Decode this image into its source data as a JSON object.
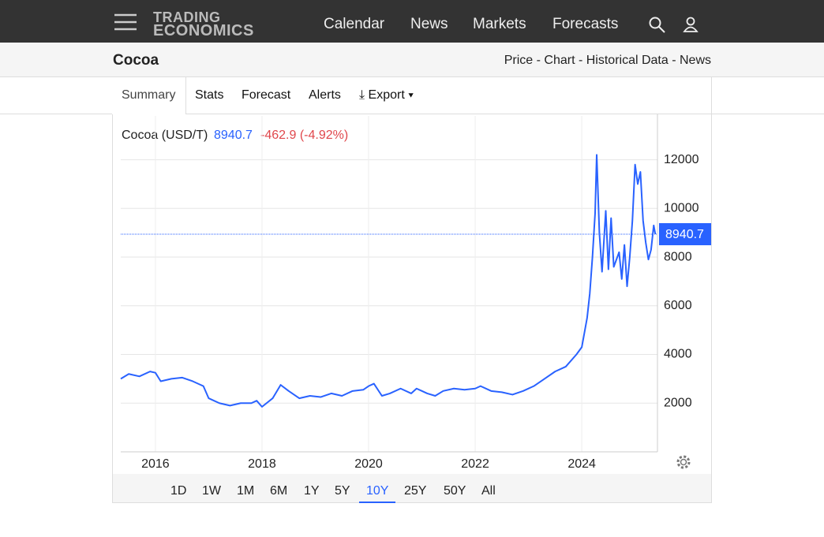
{
  "logo": {
    "line1": "TRADING",
    "line2": "ECONOMICS"
  },
  "nav": [
    "Calendar",
    "News",
    "Markets",
    "Forecasts"
  ],
  "page_title": "Cocoa",
  "page_links": [
    "Price",
    "Chart",
    "Historical Data",
    "News"
  ],
  "tabs": [
    "Summary",
    "Stats",
    "Forecast",
    "Alerts",
    "Export"
  ],
  "chart_data": {
    "type": "line",
    "current_value": 8940.7,
    "change_label": "-462.9 (-4.92%)",
    "x": [
      2015.35,
      2015.5,
      2015.7,
      2015.9,
      2016.0,
      2016.1,
      2016.3,
      2016.5,
      2016.7,
      2016.9,
      2017.0,
      2017.2,
      2017.4,
      2017.6,
      2017.8,
      2017.9,
      2018.0,
      2018.2,
      2018.35,
      2018.5,
      2018.7,
      2018.9,
      2019.1,
      2019.3,
      2019.5,
      2019.7,
      2019.9,
      2020.0,
      2020.1,
      2020.25,
      2020.4,
      2020.6,
      2020.8,
      2020.9,
      2021.0,
      2021.1,
      2021.25,
      2021.4,
      2021.6,
      2021.8,
      2022.0,
      2022.1,
      2022.3,
      2022.5,
      2022.7,
      2022.9,
      2023.1,
      2023.3,
      2023.5,
      2023.7,
      2023.9,
      2024.0,
      2024.1,
      2024.15,
      2024.2,
      2024.25,
      2024.28,
      2024.33,
      2024.38,
      2024.45,
      2024.5,
      2024.55,
      2024.6,
      2024.7,
      2024.75,
      2024.8,
      2024.85,
      2024.9,
      2024.95,
      2025.0,
      2025.05,
      2025.1,
      2025.15,
      2025.2,
      2025.25,
      2025.3,
      2025.35,
      2025.38
    ],
    "series": [
      {
        "name": "Cocoa (USD/T)",
        "color": "#2962ff",
        "values": [
          3000,
          3200,
          3100,
          3300,
          3250,
          2900,
          3000,
          3050,
          2900,
          2700,
          2200,
          2000,
          1900,
          2000,
          2000,
          2100,
          1850,
          2200,
          2750,
          2500,
          2200,
          2300,
          2250,
          2400,
          2300,
          2500,
          2550,
          2700,
          2800,
          2300,
          2400,
          2600,
          2400,
          2600,
          2500,
          2400,
          2300,
          2500,
          2600,
          2550,
          2600,
          2700,
          2500,
          2450,
          2350,
          2500,
          2700,
          3000,
          3300,
          3500,
          4000,
          4300,
          5500,
          6500,
          8000,
          9800,
          12200,
          9000,
          7400,
          9900,
          7500,
          9600,
          7600,
          8200,
          7100,
          8500,
          6800,
          8000,
          9500,
          11800,
          11000,
          11500,
          9500,
          8600,
          7900,
          8300,
          9300,
          8940.7
        ]
      }
    ],
    "xlim": [
      2015.35,
      2025.42
    ],
    "xticks": [
      2016,
      2018,
      2020,
      2022,
      2024
    ],
    "ylim": [
      0,
      13800
    ],
    "yticks": [
      2000,
      4000,
      6000,
      8000,
      10000,
      12000
    ],
    "grid": true
  },
  "ranges": [
    "1D",
    "1W",
    "1M",
    "6M",
    "1Y",
    "5Y",
    "10Y",
    "25Y",
    "50Y",
    "All"
  ],
  "active_range": "10Y"
}
